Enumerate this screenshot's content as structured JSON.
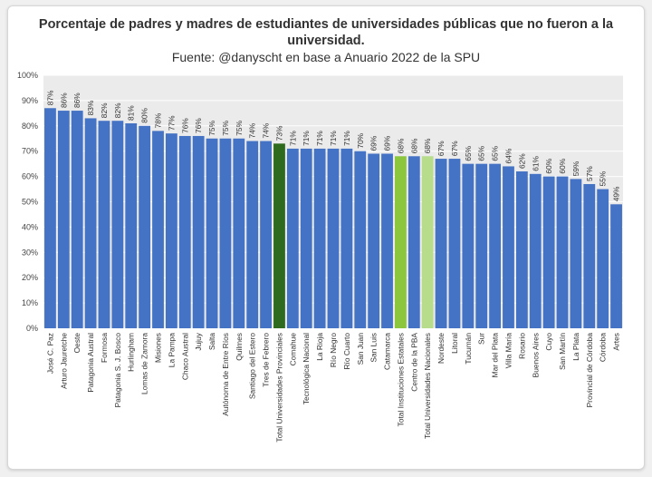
{
  "chart_data": {
    "type": "bar",
    "title": "Porcentaje de padres y madres de estudiantes de universidades públicas que no fueron a la universidad.",
    "subtitle": "Fuente: @danyscht en base a Anuario 2022 de la SPU",
    "xlabel": "",
    "ylabel": "",
    "ylim": [
      0,
      100
    ],
    "y_ticks": [
      "0%",
      "10%",
      "20%",
      "30%",
      "40%",
      "50%",
      "60%",
      "70%",
      "80%",
      "90%",
      "100%"
    ],
    "grid": true,
    "categories": [
      "José C. Paz",
      "Arturo Jauretche",
      "Oeste",
      "Patagonia Austral",
      "Formosa",
      "Patagonia S. J. Bosco",
      "Hurlingham",
      "Lomas de Zamora",
      "Misiones",
      "La Pampa",
      "Chaco Austral",
      "Jujuy",
      "Salta",
      "Autónoma de Entre Ríos",
      "Quilmes",
      "Santiago del Estero",
      "Tres de Febrero",
      "Total Universidades Provinciales",
      "Comahue",
      "Tecnológica Nacional",
      "La Rioja",
      "Río Negro",
      "Río Cuarto",
      "San Juan",
      "San Luis",
      "Catamarca",
      "Total Instituciones Estatales",
      "Centro de la PBA",
      "Total Universidades Nacionales",
      "Nordeste",
      "Litoral",
      "Tucumán",
      "Sur",
      "Mar del Plata",
      "Villa María",
      "Rosario",
      "Buenos Aires",
      "Cuyo",
      "San Martín",
      "La Plata",
      "Provincial de Córdoba",
      "Córdoba",
      "Artes"
    ],
    "values": [
      87,
      86,
      86,
      83,
      82,
      82,
      81,
      80,
      78,
      77,
      76,
      76,
      75,
      75,
      75,
      74,
      74,
      73,
      71,
      71,
      71,
      71,
      71,
      70,
      69,
      69,
      68,
      68,
      68,
      67,
      67,
      65,
      65,
      65,
      64,
      62,
      61,
      60,
      60,
      59,
      57,
      55,
      49
    ],
    "data_labels": [
      "87%",
      "86%",
      "86%",
      "83%",
      "82%",
      "82%",
      "81%",
      "80%",
      "78%",
      "77%",
      "76%",
      "76%",
      "75%",
      "75%",
      "75%",
      "74%",
      "74%",
      "73%",
      "71%",
      "71%",
      "71%",
      "71%",
      "71%",
      "70%",
      "69%",
      "69%",
      "68%",
      "68%",
      "68%",
      "67%",
      "67%",
      "65%",
      "65%",
      "65%",
      "64%",
      "62%",
      "61%",
      "60%",
      "60%",
      "59%",
      "57%",
      "55%",
      "49%"
    ],
    "highlight_colors": {
      "Total Universidades Provinciales": "#2e6b1f",
      "Total Instituciones Estatales": "#8cc63f",
      "Total Universidades Nacionales": "#b6dc8c"
    },
    "colors": {
      "bar": "#4472c4",
      "plot_background": "#ebebeb",
      "grid": "#ffffff"
    }
  }
}
